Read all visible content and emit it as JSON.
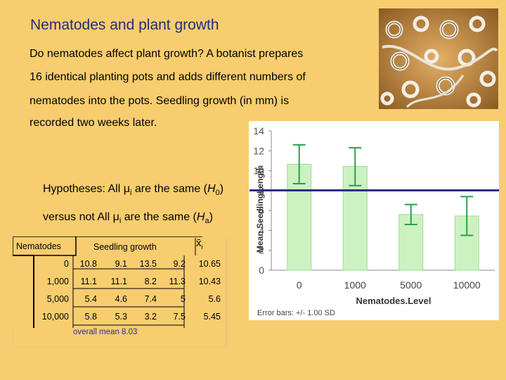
{
  "title": "Nematodes and plant growth",
  "intro_lines": [
    "Do nematodes affect plant growth? A botanist prepares",
    "16 identical planting pots and adds different numbers of",
    "nematodes into the pots. Seedling growth (in mm) is",
    "recorded two weeks later."
  ],
  "hypotheses": {
    "line1_prefix": "Hypotheses: All ",
    "mu": "μ",
    "sub_i": "i",
    "line1_mid": " are the same (",
    "h0": "H",
    "h0_sub": "0",
    "close": ")",
    "line2_prefix": "versus not All ",
    "line2_mid": " are the same (",
    "ha": "H",
    "ha_sub": "a"
  },
  "table": {
    "col1_header": "Nematodes",
    "col2_header": "Seedling growth",
    "xbar_symbol": "x̄",
    "xbar_sub": "i",
    "rows": [
      {
        "level": "0",
        "values": [
          "10.8",
          "9.1",
          "13.5",
          "9.2"
        ],
        "mean": "10.65"
      },
      {
        "level": "1,000",
        "values": [
          "11.1",
          "11.1",
          "8.2",
          "11.3"
        ],
        "mean": "10.43"
      },
      {
        "level": "5,000",
        "values": [
          "5.4",
          "4.6",
          "7.4",
          "5"
        ],
        "mean": "5.6"
      },
      {
        "level": "10,000",
        "values": [
          "5.8",
          "5.3",
          "3.2",
          "7.5"
        ],
        "mean": "5.45"
      }
    ],
    "overall_mean": "overall mean 8.03"
  },
  "chart_data": {
    "type": "bar",
    "categories": [
      "0",
      "1000",
      "5000",
      "10000"
    ],
    "values": [
      10.65,
      10.43,
      5.6,
      5.45
    ],
    "error_low": [
      8.7,
      8.5,
      4.6,
      3.5
    ],
    "error_high": [
      12.6,
      12.3,
      6.6,
      7.4
    ],
    "ylabel": "Mean SeedlingLength",
    "xlabel": "Nematodes.Level",
    "ylim": [
      0,
      14
    ],
    "yticks": [
      "0",
      "2",
      "4",
      "6",
      "8",
      "10",
      "12",
      "14"
    ],
    "overall_mean_line": 8.03,
    "footnote": "Error bars: +/- 1.00 SD",
    "colors": {
      "bar": "#ccf2c2",
      "bar_edge": "#a3d99a",
      "error": "#2f9e48",
      "mean_line": "#2a2e86"
    }
  }
}
